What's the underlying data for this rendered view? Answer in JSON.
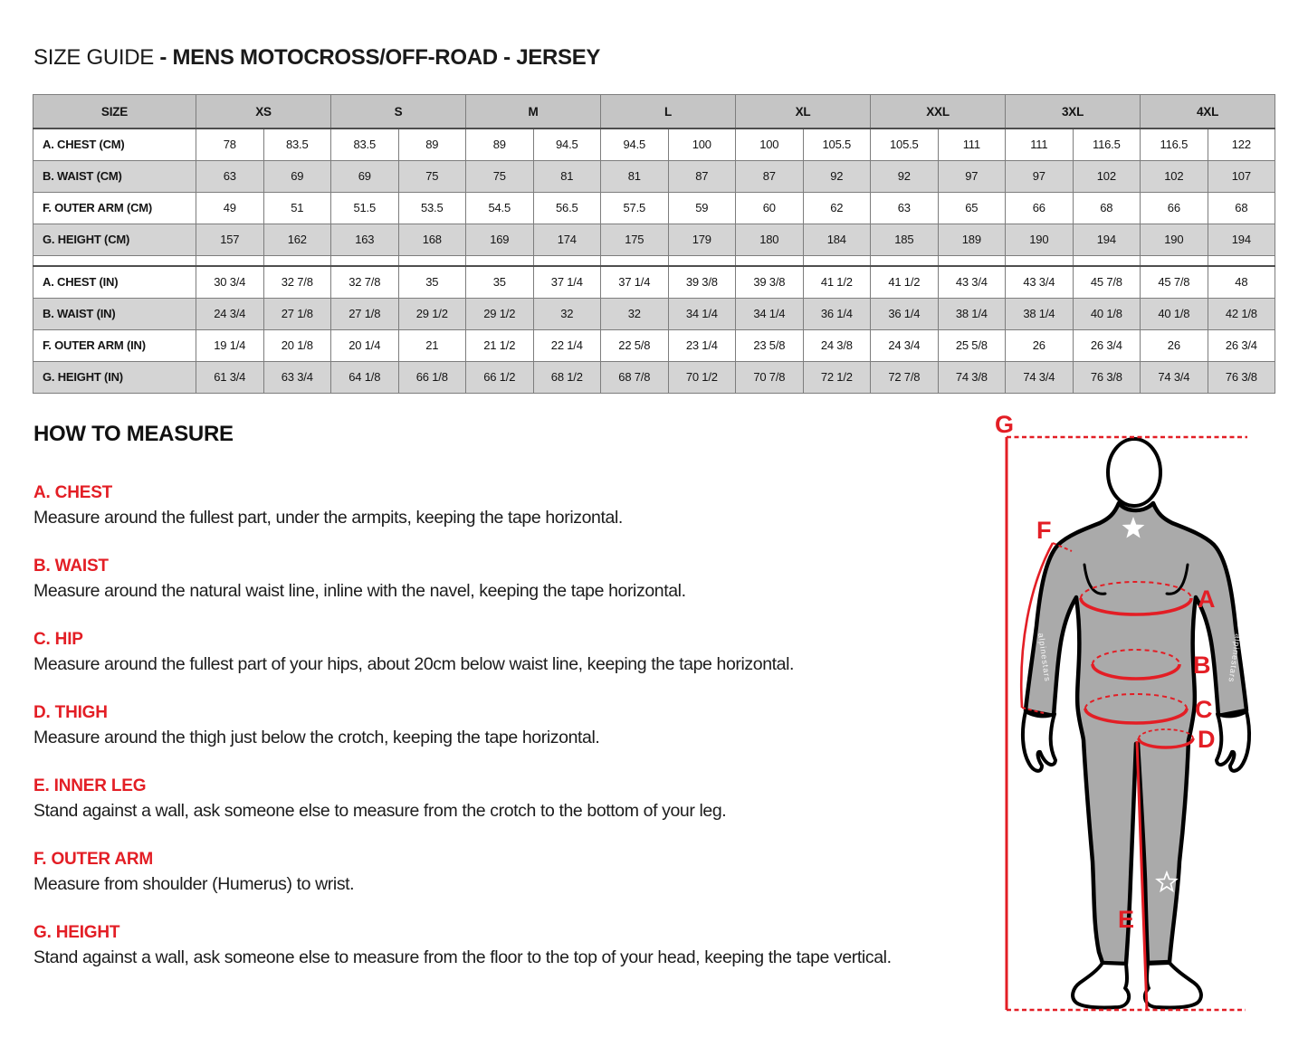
{
  "title": {
    "normal": "SIZE GUIDE ",
    "bold": "- MENS MOTOCROSS/OFF-ROAD - JERSEY"
  },
  "size_table": {
    "corner_label": "SIZE",
    "sizes": [
      "XS",
      "S",
      "M",
      "L",
      "XL",
      "XXL",
      "3XL",
      "4XL"
    ],
    "rows_cm": [
      {
        "label": "A. CHEST (CM)",
        "values": [
          "78",
          "83.5",
          "83.5",
          "89",
          "89",
          "94.5",
          "94.5",
          "100",
          "100",
          "105.5",
          "105.5",
          "111",
          "111",
          "116.5",
          "116.5",
          "122"
        ]
      },
      {
        "label": "B. WAIST (CM)",
        "values": [
          "63",
          "69",
          "69",
          "75",
          "75",
          "81",
          "81",
          "87",
          "87",
          "92",
          "92",
          "97",
          "97",
          "102",
          "102",
          "107"
        ]
      },
      {
        "label": "F. OUTER ARM (CM)",
        "values": [
          "49",
          "51",
          "51.5",
          "53.5",
          "54.5",
          "56.5",
          "57.5",
          "59",
          "60",
          "62",
          "63",
          "65",
          "66",
          "68",
          "66",
          "68"
        ]
      },
      {
        "label": "G. HEIGHT (CM)",
        "values": [
          "157",
          "162",
          "163",
          "168",
          "169",
          "174",
          "175",
          "179",
          "180",
          "184",
          "185",
          "189",
          "190",
          "194",
          "190",
          "194"
        ]
      }
    ],
    "rows_in": [
      {
        "label": "A. CHEST (IN)",
        "values": [
          "30 3/4",
          "32 7/8",
          "32 7/8",
          "35",
          "35",
          "37 1/4",
          "37 1/4",
          "39 3/8",
          "39 3/8",
          "41 1/2",
          "41 1/2",
          "43 3/4",
          "43 3/4",
          "45 7/8",
          "45 7/8",
          "48"
        ]
      },
      {
        "label": "B. WAIST (IN)",
        "values": [
          "24 3/4",
          "27 1/8",
          "27 1/8",
          "29 1/2",
          "29 1/2",
          "32",
          "32",
          "34 1/4",
          "34 1/4",
          "36 1/4",
          "36 1/4",
          "38 1/4",
          "38 1/4",
          "40 1/8",
          "40 1/8",
          "42 1/8"
        ]
      },
      {
        "label": "F. OUTER ARM (IN)",
        "values": [
          "19 1/4",
          "20 1/8",
          "20 1/4",
          "21",
          "21 1/2",
          "22 1/4",
          "22 5/8",
          "23 1/4",
          "23 5/8",
          "24 3/8",
          "24 3/4",
          "25 5/8",
          "26",
          "26 3/4",
          "26",
          "26 3/4"
        ]
      },
      {
        "label": "G. HEIGHT (IN)",
        "values": [
          "61 3/4",
          "63 3/4",
          "64 1/8",
          "66 1/8",
          "66 1/2",
          "68 1/2",
          "68 7/8",
          "70 1/2",
          "70 7/8",
          "72 1/2",
          "72 7/8",
          "74 3/8",
          "74 3/4",
          "76 3/8",
          "74 3/4",
          "76 3/8"
        ]
      }
    ]
  },
  "how_to_measure": {
    "heading": "HOW TO MEASURE",
    "sections": [
      {
        "label": "A. CHEST",
        "text": "Measure around the fullest part, under the armpits, keeping the tape horizontal."
      },
      {
        "label": "B. WAIST",
        "text": "Measure around the natural waist line, inline with the navel, keeping the tape horizontal."
      },
      {
        "label": "C. HIP",
        "text": "Measure around the fullest part of your hips, about 20cm below waist line, keeping the tape horizontal."
      },
      {
        "label": "D. THIGH",
        "text": "Measure around the thigh just below the crotch, keeping the tape horizontal."
      },
      {
        "label": "E. INNER LEG",
        "text": "Stand against a wall, ask someone else to measure from the crotch to the bottom of your leg."
      },
      {
        "label": "F. OUTER ARM",
        "text": "Measure from shoulder (Humerus) to wrist."
      },
      {
        "label": "G. HEIGHT",
        "text": "Stand against a wall, ask someone else to measure from the floor to the top of your head, keeping the tape vertical."
      }
    ]
  },
  "figure": {
    "labels": {
      "a": "A",
      "b": "B",
      "c": "C",
      "d": "D",
      "e": "E",
      "f": "F",
      "g": "G"
    }
  },
  "colors": {
    "accent_red": "#e31e25",
    "table_header_bg": "#c5c5c5",
    "table_shade_bg": "#d4d4d4",
    "suit_gray": "#aaaaaa",
    "outline_black": "#000000"
  }
}
